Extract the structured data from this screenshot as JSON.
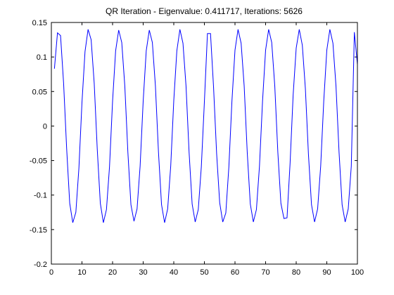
{
  "chart_data": {
    "type": "line",
    "title": "QR Iteration - Eigenvalue: 0.411717, Iterations: 5626",
    "xlabel": "",
    "ylabel": "",
    "xlim": [
      0,
      100
    ],
    "ylim": [
      -0.2,
      0.15
    ],
    "xticks": [
      0,
      10,
      20,
      30,
      40,
      50,
      60,
      70,
      80,
      90,
      100
    ],
    "yticks": [
      -0.2,
      -0.15,
      -0.1,
      -0.05,
      0,
      0.05,
      0.1,
      0.15
    ],
    "xtick_labels": [
      "0",
      "10",
      "20",
      "30",
      "40",
      "50",
      "60",
      "70",
      "80",
      "90",
      "100"
    ],
    "ytick_labels": [
      "-0.2",
      "-0.15",
      "-0.1",
      "-0.05",
      "0",
      "0.05",
      "0.1",
      "0.15"
    ],
    "grid": false,
    "legend": "none",
    "line_color": "#0000ff",
    "series": [
      {
        "x": [
          1,
          2,
          3,
          4,
          5,
          6,
          7,
          8,
          9,
          10,
          11,
          12,
          13,
          14,
          15,
          16,
          17,
          18,
          19,
          20,
          21,
          22,
          23,
          24,
          25,
          26,
          27,
          28,
          29,
          30,
          31,
          32,
          33,
          34,
          35,
          36,
          37,
          38,
          39,
          40,
          41,
          42,
          43,
          44,
          45,
          46,
          47,
          48,
          49,
          50,
          51,
          52,
          53,
          54,
          55,
          56,
          57,
          58,
          59,
          60,
          61,
          62,
          63,
          64,
          65,
          66,
          67,
          68,
          69,
          70,
          71,
          72,
          73,
          74,
          75,
          76,
          77,
          78,
          79,
          80,
          81,
          82,
          83,
          84,
          85,
          86,
          87,
          88,
          89,
          90,
          91,
          92,
          93,
          94,
          95,
          96,
          97,
          98,
          99,
          100
        ],
        "values": [
          0.083,
          0.135,
          0.131,
          0.062,
          -0.033,
          -0.112,
          -0.14,
          -0.125,
          -0.061,
          0.034,
          0.108,
          0.14,
          0.125,
          0.062,
          -0.034,
          -0.112,
          -0.14,
          -0.121,
          -0.059,
          0.036,
          0.109,
          0.139,
          0.121,
          0.058,
          -0.038,
          -0.114,
          -0.138,
          -0.12,
          -0.058,
          0.036,
          0.109,
          0.139,
          0.121,
          0.058,
          -0.038,
          -0.114,
          -0.14,
          -0.12,
          -0.058,
          0.037,
          0.109,
          0.14,
          0.12,
          0.058,
          -0.038,
          -0.113,
          -0.139,
          -0.121,
          -0.059,
          0.035,
          0.134,
          0.134,
          0.056,
          -0.04,
          -0.111,
          -0.139,
          -0.126,
          -0.059,
          0.036,
          0.11,
          0.14,
          0.12,
          0.058,
          -0.038,
          -0.113,
          -0.139,
          -0.121,
          -0.058,
          0.036,
          0.11,
          0.14,
          0.121,
          0.058,
          -0.038,
          -0.112,
          -0.134,
          -0.133,
          -0.054,
          0.045,
          0.113,
          0.14,
          0.117,
          0.054,
          -0.041,
          -0.114,
          -0.139,
          -0.12,
          -0.058,
          0.036,
          0.11,
          0.14,
          0.12,
          0.058,
          -0.038,
          -0.114,
          -0.139,
          -0.12,
          -0.058,
          0.136,
          0.089
        ]
      }
    ]
  }
}
